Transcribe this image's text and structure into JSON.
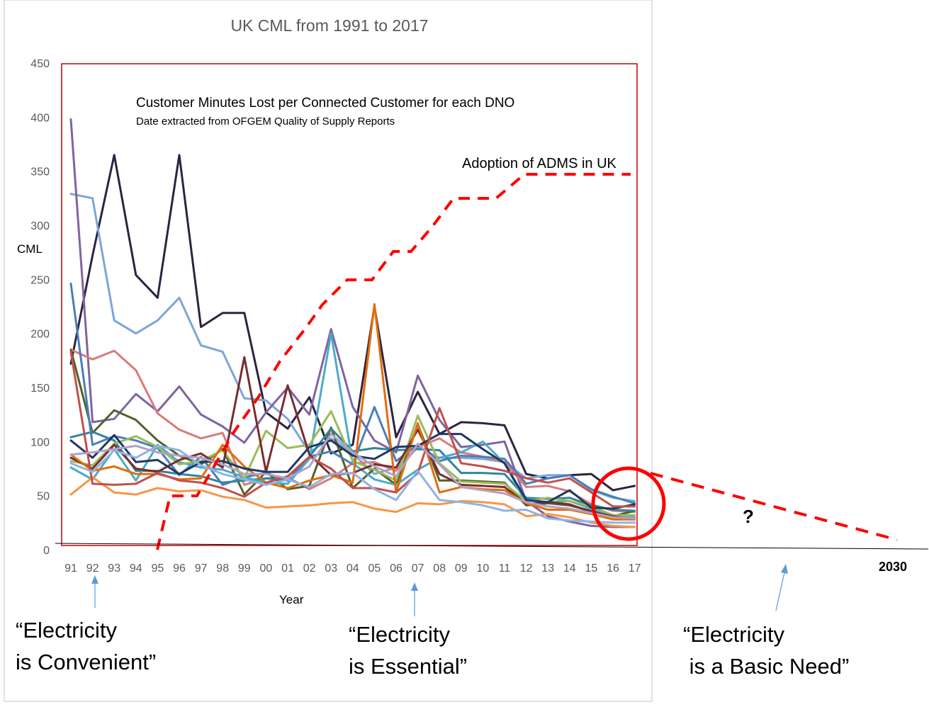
{
  "chart_data": {
    "type": "line",
    "title": "UK CML from 1991 to 2017",
    "inner_title": "Customer Minutes Lost per Connected Customer for each DNO",
    "inner_subtitle": "Date extracted from OFGEM Quality of Supply Reports",
    "xlabel": "Year",
    "ylabel": "CML",
    "ylim": [
      0,
      450
    ],
    "yticks": [
      "0",
      "50",
      "100",
      "150",
      "200",
      "250",
      "300",
      "350",
      "400",
      "450"
    ],
    "x": [
      "91",
      "92",
      "93",
      "94",
      "95",
      "96",
      "97",
      "98",
      "99",
      "00",
      "01",
      "02",
      "03",
      "04",
      "05",
      "06",
      "07",
      "08",
      "09",
      "10",
      "11",
      "12",
      "13",
      "14",
      "15",
      "16",
      "17"
    ],
    "grid": false,
    "series": [
      {
        "color": "#2c2441",
        "values": [
          172,
          272,
          365,
          254,
          233,
          365,
          206,
          219,
          219,
          127,
          112,
          141,
          89,
          97,
          225,
          104,
          146,
          107,
          118,
          117,
          115,
          70,
          66,
          69,
          70,
          55,
          59
        ]
      },
      {
        "color": "#7ca6d8",
        "values": [
          329,
          325,
          212,
          200,
          212,
          233,
          189,
          183,
          140,
          138,
          121,
          90,
          103,
          89,
          70,
          76,
          95,
          85,
          85,
          84,
          81,
          66,
          69,
          69,
          55,
          48,
          45
        ]
      },
      {
        "color": "#8064a2",
        "values": [
          398,
          118,
          121,
          144,
          128,
          151,
          125,
          114,
          99,
          127,
          150,
          125,
          204,
          132,
          101,
          90,
          161,
          120,
          95,
          97,
          100,
          45,
          31,
          26,
          22,
          21,
          21
        ]
      },
      {
        "color": "#d97b7b",
        "values": [
          185,
          176,
          184,
          166,
          126,
          111,
          103,
          108,
          60,
          66,
          67,
          56,
          66,
          80,
          81,
          73,
          95,
          103,
          90,
          86,
          81,
          58,
          59,
          54,
          42,
          36,
          35
        ]
      },
      {
        "color": "#4f6228",
        "values": [
          185,
          108,
          129,
          120,
          101,
          87,
          79,
          93,
          51,
          72,
          56,
          59,
          113,
          57,
          75,
          60,
          116,
          64,
          64,
          63,
          62,
          41,
          43,
          41,
          36,
          31,
          36
        ]
      },
      {
        "color": "#31859c",
        "values": [
          104,
          109,
          101,
          73,
          73,
          70,
          68,
          62,
          64,
          66,
          64,
          86,
          112,
          91,
          94,
          92,
          93,
          92,
          71,
          71,
          70,
          48,
          47,
          48,
          41,
          37,
          36
        ]
      },
      {
        "color": "#4a7ebb",
        "values": [
          246,
          97,
          105,
          101,
          94,
          69,
          86,
          60,
          67,
          71,
          64,
          86,
          91,
          79,
          132,
          82,
          97,
          82,
          87,
          86,
          84,
          61,
          66,
          69,
          56,
          49,
          43
        ]
      },
      {
        "color": "#4bacc6",
        "values": [
          76,
          65,
          93,
          64,
          97,
          81,
          76,
          74,
          67,
          62,
          61,
          84,
          200,
          80,
          65,
          60,
          74,
          85,
          90,
          100,
          80,
          43,
          44,
          45,
          38,
          32,
          30
        ]
      },
      {
        "color": "#9bbb59",
        "values": [
          82,
          78,
          98,
          105,
          95,
          79,
          82,
          92,
          66,
          110,
          94,
          97,
          128,
          82,
          74,
          64,
          124,
          80,
          63,
          62,
          61,
          45,
          48,
          45,
          40,
          32,
          32
        ]
      },
      {
        "color": "#7b2c2c",
        "values": [
          85,
          75,
          97,
          75,
          72,
          83,
          89,
          76,
          178,
          72,
          152,
          88,
          69,
          71,
          79,
          76,
          111,
          70,
          60,
          59,
          58,
          42,
          44,
          42,
          35,
          31,
          28
        ]
      },
      {
        "color": "#e46c0a",
        "values": [
          88,
          73,
          77,
          70,
          70,
          65,
          66,
          97,
          77,
          62,
          57,
          64,
          69,
          62,
          227,
          53,
          117,
          53,
          58,
          56,
          55,
          43,
          37,
          37,
          33,
          28,
          28
        ]
      },
      {
        "color": "#f79646",
        "values": [
          51,
          67,
          53,
          51,
          57,
          54,
          55,
          49,
          46,
          39,
          40,
          41,
          43,
          44,
          38,
          35,
          43,
          42,
          45,
          44,
          42,
          31,
          33,
          30,
          25,
          22,
          21
        ]
      },
      {
        "color": "#1f3864",
        "values": [
          101,
          85,
          106,
          81,
          83,
          70,
          81,
          82,
          75,
          72,
          72,
          95,
          101,
          87,
          84,
          95,
          96,
          107,
          107,
          93,
          80,
          46,
          44,
          55,
          39,
          38,
          42
        ]
      },
      {
        "color": "#c0504d",
        "values": [
          183,
          61,
          60,
          61,
          71,
          64,
          62,
          57,
          49,
          62,
          68,
          86,
          75,
          57,
          57,
          53,
          71,
          131,
          80,
          77,
          73,
          66,
          62,
          66,
          53,
          40,
          40
        ]
      },
      {
        "color": "#8eb4e3",
        "values": [
          80,
          72,
          92,
          85,
          96,
          92,
          78,
          70,
          65,
          60,
          65,
          58,
          70,
          71,
          56,
          46,
          73,
          46,
          44,
          41,
          36,
          37,
          29,
          27,
          26,
          25,
          25
        ]
      },
      {
        "color": "#b1a0c7",
        "values": [
          88,
          90,
          93,
          96,
          90,
          87,
          85,
          79,
          70,
          70,
          66,
          77,
          107,
          90,
          77,
          68,
          98,
          79,
          58,
          55,
          52,
          44,
          40,
          38,
          34,
          30,
          29
        ]
      }
    ],
    "adms_label": "Adoption of ADMS in UK",
    "projection_year": "2030",
    "projection_mark": "?",
    "annotations": [
      {
        "line1": "“Electricity",
        "line2": "is Convenient”"
      },
      {
        "line1": "“Electricity",
        "line2": "is Essential”"
      },
      {
        "line1": "“Electricity",
        "line2": " is a Basic Need”"
      }
    ],
    "colors": {
      "adms": "#ff0000",
      "frame": "#c00000",
      "arrow": "#5b9bd5",
      "ticks": "#595959"
    }
  }
}
